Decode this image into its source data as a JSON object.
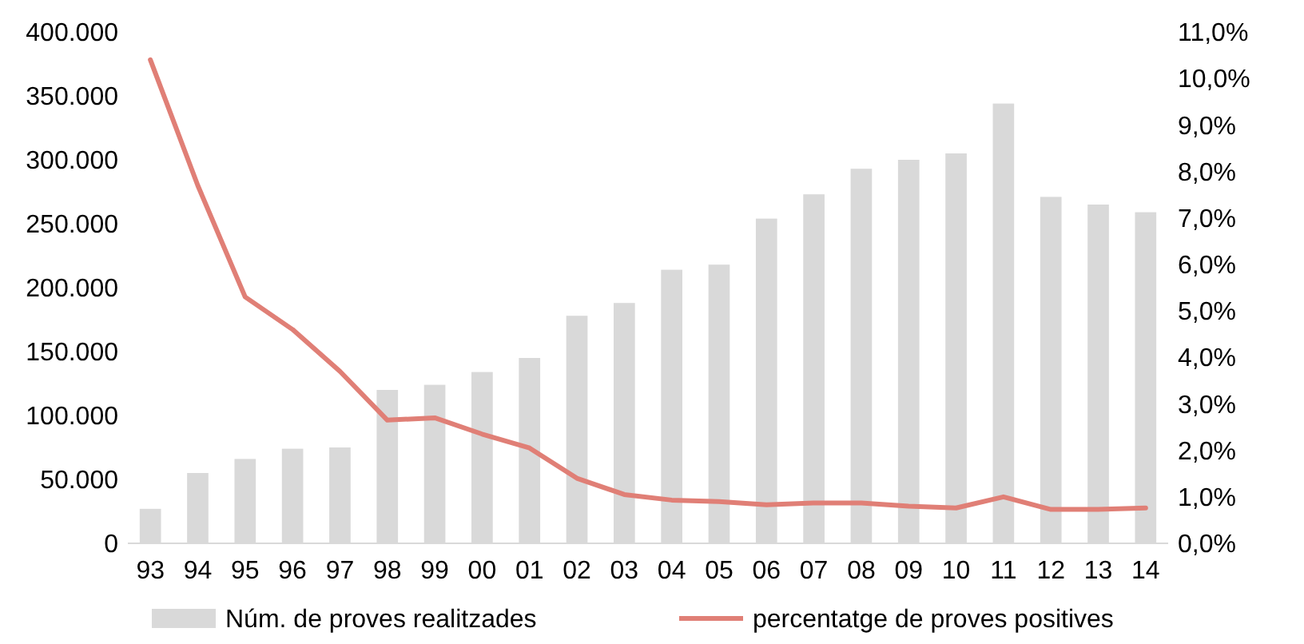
{
  "chart_data": {
    "type": "bar",
    "categories": [
      "93",
      "94",
      "95",
      "96",
      "97",
      "98",
      "99",
      "00",
      "01",
      "02",
      "03",
      "04",
      "05",
      "06",
      "07",
      "08",
      "09",
      "10",
      "11",
      "12",
      "13",
      "14"
    ],
    "series": [
      {
        "name": "Núm. de proves realitzades",
        "color": "#d9d9d9",
        "values": [
          27000,
          55000,
          66000,
          74000,
          75000,
          120000,
          124000,
          134000,
          145000,
          178000,
          188000,
          214000,
          218000,
          254000,
          273000,
          293000,
          300000,
          305000,
          344000,
          271000,
          265000,
          259000
        ]
      },
      {
        "name": "percentatge de proves positives",
        "type": "line",
        "axis": "y2",
        "color": "#e07f76",
        "values": [
          10.4,
          7.7,
          5.3,
          4.6,
          3.7,
          2.65,
          2.7,
          2.35,
          2.05,
          1.4,
          1.05,
          0.93,
          0.9,
          0.83,
          0.87,
          0.87,
          0.8,
          0.76,
          1.0,
          0.73,
          0.73,
          0.76
        ]
      }
    ],
    "ylim": [
      0,
      400000
    ],
    "yticks": [
      {
        "value": 0,
        "label": "0"
      },
      {
        "value": 50000,
        "label": "50.000"
      },
      {
        "value": 100000,
        "label": "100.000"
      },
      {
        "value": 150000,
        "label": "150.000"
      },
      {
        "value": 200000,
        "label": "200.000"
      },
      {
        "value": 250000,
        "label": "250.000"
      },
      {
        "value": 300000,
        "label": "300.000"
      },
      {
        "value": 350000,
        "label": "350.000"
      },
      {
        "value": 400000,
        "label": "400.000"
      }
    ],
    "y2lim": [
      0,
      11
    ],
    "y2ticks": [
      {
        "value": 0,
        "label": "0,0%"
      },
      {
        "value": 1,
        "label": "1,0%"
      },
      {
        "value": 2,
        "label": "2,0%"
      },
      {
        "value": 3,
        "label": "3,0%"
      },
      {
        "value": 4,
        "label": "4,0%"
      },
      {
        "value": 5,
        "label": "5,0%"
      },
      {
        "value": 6,
        "label": "6,0%"
      },
      {
        "value": 7,
        "label": "7,0%"
      },
      {
        "value": 8,
        "label": "8,0%"
      },
      {
        "value": 9,
        "label": "9,0%"
      },
      {
        "value": 10,
        "label": "10,0%"
      },
      {
        "value": 11,
        "label": "11,0%"
      }
    ],
    "legend": "bottom",
    "grid": false
  }
}
